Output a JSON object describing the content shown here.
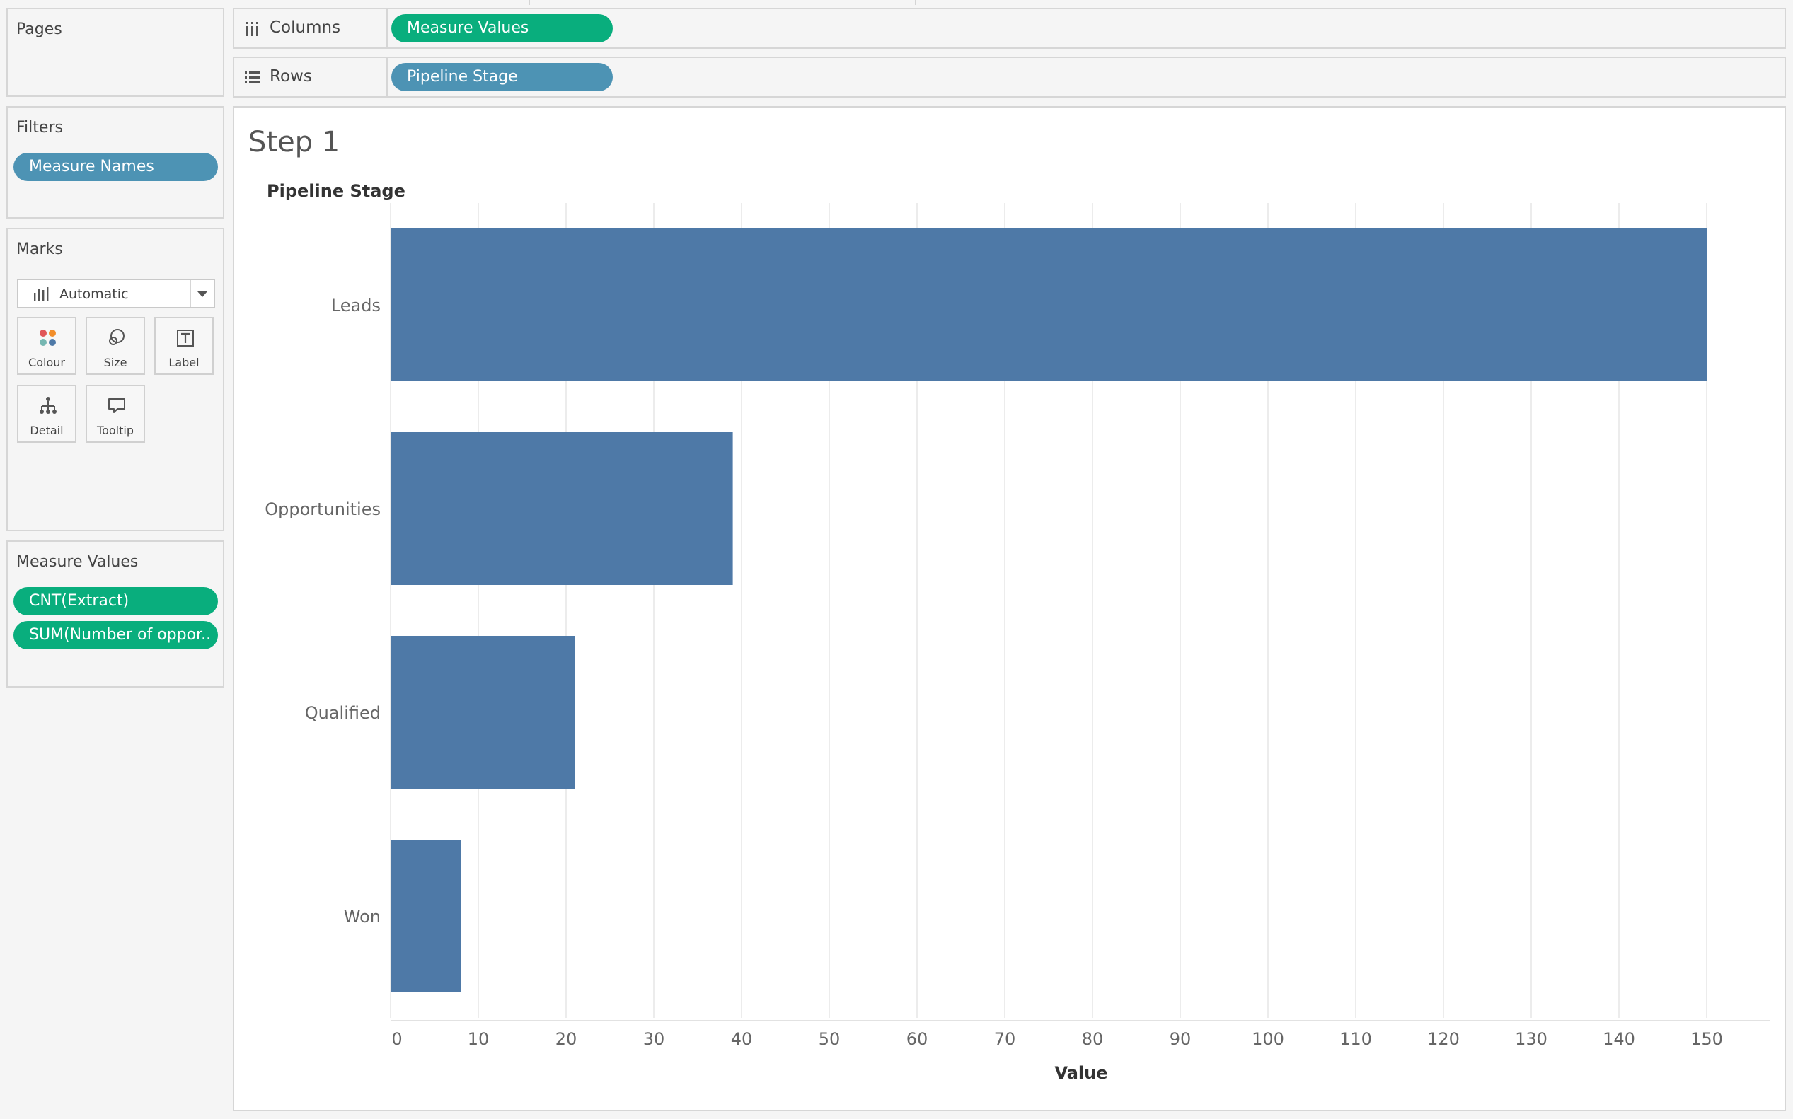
{
  "pages": {
    "title": "Pages"
  },
  "filters": {
    "title": "Filters",
    "pills": [
      "Measure Names"
    ]
  },
  "marks": {
    "title": "Marks",
    "type": "Automatic",
    "buttons": {
      "colour": "Colour",
      "size": "Size",
      "label": "Label",
      "detail": "Detail",
      "tooltip": "Tooltip"
    }
  },
  "measure_values": {
    "title": "Measure Values",
    "pills": [
      "CNT(Extract)",
      "SUM(Number of oppor.."
    ]
  },
  "shelves": {
    "columns": {
      "label": "Columns",
      "pill": "Measure Values"
    },
    "rows": {
      "label": "Rows",
      "pill": "Pipeline Stage"
    }
  },
  "sheet": {
    "title": "Step 1"
  },
  "colors": {
    "bar": "#4e79a7",
    "pill_blue": "#4d93b4",
    "pill_green": "#09ae7d"
  },
  "chart_data": {
    "type": "bar",
    "orientation": "horizontal",
    "row_header": "Pipeline Stage",
    "xlabel": "Value",
    "categories": [
      "Leads",
      "Opportunities",
      "Qualified",
      "Won"
    ],
    "values": [
      150,
      39,
      21,
      8
    ],
    "xlim": [
      0,
      150
    ],
    "ticks": [
      0,
      10,
      20,
      30,
      40,
      50,
      60,
      70,
      80,
      90,
      100,
      110,
      120,
      130,
      140,
      150
    ],
    "grid": "vertical"
  }
}
